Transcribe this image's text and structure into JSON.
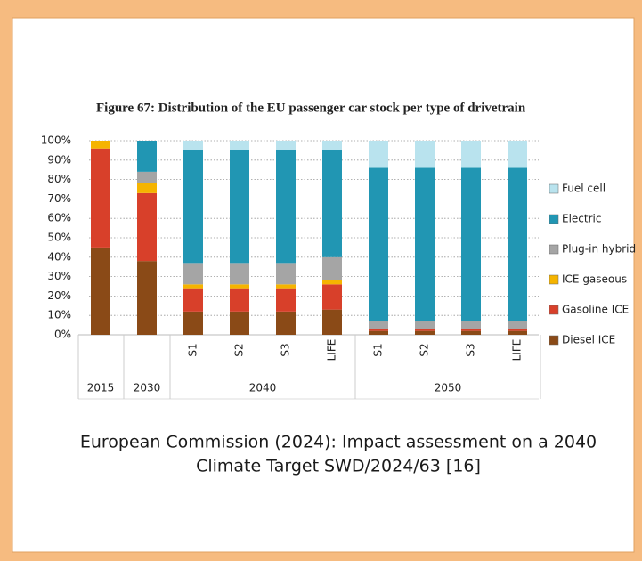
{
  "chart_data": {
    "type": "stacked_bar",
    "title": "Figure 67: Distribution of the EU passenger car stock per type of drivetrain",
    "groups": [
      {
        "name": "2015",
        "categories": [
          null
        ]
      },
      {
        "name": "2030",
        "categories": [
          null
        ]
      },
      {
        "name": "2040",
        "categories": [
          "S1",
          "S2",
          "S3",
          "LIFE"
        ]
      },
      {
        "name": "2050",
        "categories": [
          "S1",
          "S2",
          "S3",
          "LIFE"
        ]
      }
    ],
    "series": [
      {
        "name": "Diesel ICE",
        "color": "#8a4a17",
        "values": [
          45,
          38,
          12,
          12,
          12,
          13,
          2,
          2,
          2,
          2
        ]
      },
      {
        "name": "Gasoline ICE",
        "color": "#d8402a",
        "values": [
          51,
          35,
          12,
          12,
          12,
          13,
          1,
          1,
          1,
          1
        ]
      },
      {
        "name": "ICE gaseous",
        "color": "#f5b400",
        "values": [
          4,
          5,
          2,
          2,
          2,
          2,
          0,
          0,
          0,
          0
        ]
      },
      {
        "name": "Plug-in hybrid",
        "color": "#a5a5a5",
        "values": [
          0,
          6,
          11,
          11,
          11,
          12,
          4,
          4,
          4,
          4
        ]
      },
      {
        "name": "Electric",
        "color": "#2196b3",
        "values": [
          0,
          16,
          58,
          58,
          58,
          55,
          79,
          79,
          79,
          79
        ]
      },
      {
        "name": "Fuel cell",
        "color": "#b9e3ee",
        "values": [
          0,
          0,
          5,
          5,
          5,
          5,
          14,
          14,
          14,
          14
        ]
      }
    ],
    "ylim": [
      0,
      100
    ],
    "yticks": [
      {
        "value": 0,
        "label": "0%"
      },
      {
        "value": 10,
        "label": "10%"
      },
      {
        "value": 20,
        "label": "20%"
      },
      {
        "value": 30,
        "label": "30%"
      },
      {
        "value": 40,
        "label": "40%"
      },
      {
        "value": 50,
        "label": "50%"
      },
      {
        "value": 60,
        "label": "60%"
      },
      {
        "value": 70,
        "label": "70%"
      },
      {
        "value": 80,
        "label": "80%"
      },
      {
        "value": 90,
        "label": "90%"
      },
      {
        "value": 100,
        "label": "100%"
      }
    ],
    "grid": true
  },
  "caption": [
    "European Commission (2024): Impact assessment on a 2040",
    "Climate Target SWD/2024/63 [16]"
  ]
}
